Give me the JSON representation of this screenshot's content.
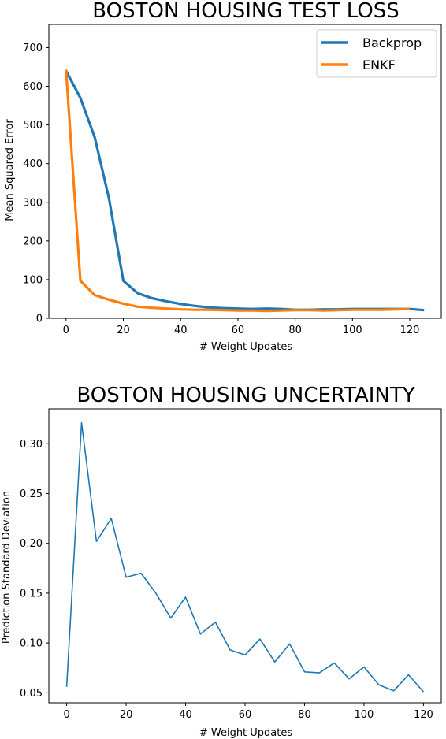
{
  "chart_data": [
    {
      "type": "line",
      "title": "BOSTON HOUSING TEST LOSS",
      "xlabel": "# Weight Updates",
      "ylabel": "Mean Squared Error",
      "xlim": [
        -6,
        131
      ],
      "ylim": [
        0,
        760
      ],
      "xticks": [
        0,
        20,
        40,
        60,
        80,
        100,
        120
      ],
      "yticks": [
        0,
        100,
        200,
        300,
        400,
        500,
        600,
        700
      ],
      "legend": "top-right",
      "grid": false,
      "series": [
        {
          "name": "Backprop",
          "color": "#1f77b4",
          "x": [
            0,
            5,
            10,
            15,
            20,
            25,
            30,
            35,
            40,
            45,
            50,
            55,
            60,
            65,
            70,
            75,
            80,
            85,
            90,
            95,
            100,
            105,
            110,
            115,
            120,
            125
          ],
          "y": [
            640,
            570,
            468,
            310,
            97,
            65,
            52,
            44,
            37,
            32,
            28,
            26,
            25,
            24,
            25,
            24,
            22,
            22,
            23,
            23,
            24,
            24,
            24,
            24,
            24,
            21
          ]
        },
        {
          "name": "ENKF",
          "color": "#ff7f0e",
          "x": [
            0,
            5,
            10,
            15,
            20,
            25,
            30,
            35,
            40,
            45,
            50,
            55,
            60,
            65,
            70,
            75,
            80,
            85,
            90,
            95,
            100,
            105,
            110,
            115,
            120
          ],
          "y": [
            643,
            97,
            60,
            48,
            38,
            30,
            27,
            25,
            23,
            22,
            22,
            21,
            20,
            20,
            19,
            20,
            21,
            21,
            20,
            21,
            22,
            22,
            22,
            23,
            24
          ]
        }
      ]
    },
    {
      "type": "line",
      "title": "BOSTON HOUSING UNCERTAINTY",
      "xlabel": "# Weight Updates",
      "ylabel": "Prediction Standard Deviation",
      "xlim": [
        -6,
        126
      ],
      "ylim": [
        0.04,
        0.335
      ],
      "xticks": [
        0,
        20,
        40,
        60,
        80,
        100,
        120
      ],
      "yticks": [
        0.05,
        0.1,
        0.15,
        0.2,
        0.25,
        0.3
      ],
      "ytick_labels": [
        "0.05",
        "0.10",
        "0.15",
        "0.20",
        "0.25",
        "0.30"
      ],
      "grid": false,
      "series": [
        {
          "color": "#1f77b4",
          "x": [
            0,
            5,
            10,
            15,
            20,
            25,
            30,
            35,
            40,
            45,
            50,
            55,
            60,
            65,
            70,
            75,
            80,
            85,
            90,
            95,
            100,
            105,
            110,
            115,
            120
          ],
          "y": [
            0.056,
            0.321,
            0.202,
            0.225,
            0.166,
            0.17,
            0.15,
            0.125,
            0.146,
            0.109,
            0.121,
            0.093,
            0.088,
            0.104,
            0.081,
            0.099,
            0.071,
            0.07,
            0.08,
            0.064,
            0.076,
            0.058,
            0.052,
            0.068,
            0.051
          ]
        }
      ]
    }
  ]
}
